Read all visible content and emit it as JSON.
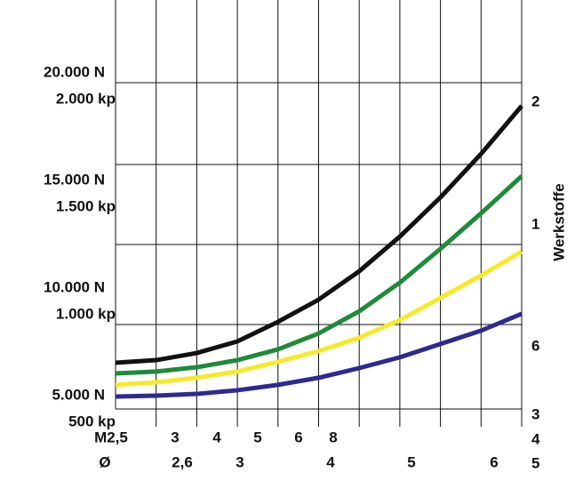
{
  "chart_data": {
    "type": "line",
    "y_axis_label_right": "Werkstoffe",
    "right_labels": [
      "2",
      "1",
      "6",
      "3",
      "4",
      "5"
    ],
    "thread_row": [
      "M2,5",
      "3",
      "4",
      "5",
      "6",
      "8"
    ],
    "diameter_row": [
      "Ø",
      "2,6",
      "3",
      "4",
      "5",
      "6"
    ],
    "categories": [
      null,
      null,
      null,
      null,
      null,
      null,
      null,
      null,
      null,
      null,
      null
    ],
    "ylim": [
      5000,
      24000
    ],
    "yticks": [
      {
        "value": 5000,
        "label": "5.000 N",
        "label2": "500 kp"
      },
      {
        "value": 10000,
        "label": "10.000 N",
        "label2": "1.000 kp"
      },
      {
        "value": 15000,
        "label": "15.000 N",
        "label2": "1.500 kp"
      },
      {
        "value": 20000,
        "label": "20.000 N",
        "label2": "2.000 kp"
      }
    ],
    "grid": true,
    "series": [
      {
        "color": "#111111",
        "values": [
          7150,
          7270,
          7600,
          8140,
          9050,
          10080,
          11400,
          13010,
          14830,
          16850,
          19080
        ]
      },
      {
        "color": "#1f8a3a",
        "values": [
          6650,
          6740,
          6940,
          7270,
          7770,
          8510,
          9540,
          10870,
          12440,
          14090,
          15820
        ]
      },
      {
        "color": "#f5ea2a",
        "values": [
          6120,
          6240,
          6450,
          6740,
          7190,
          7690,
          8310,
          9130,
          10160,
          11200,
          12310
        ]
      },
      {
        "color": "#2e2a8e",
        "values": [
          5580,
          5620,
          5700,
          5870,
          6120,
          6450,
          6900,
          7400,
          8020,
          8640,
          9420
        ]
      }
    ]
  }
}
